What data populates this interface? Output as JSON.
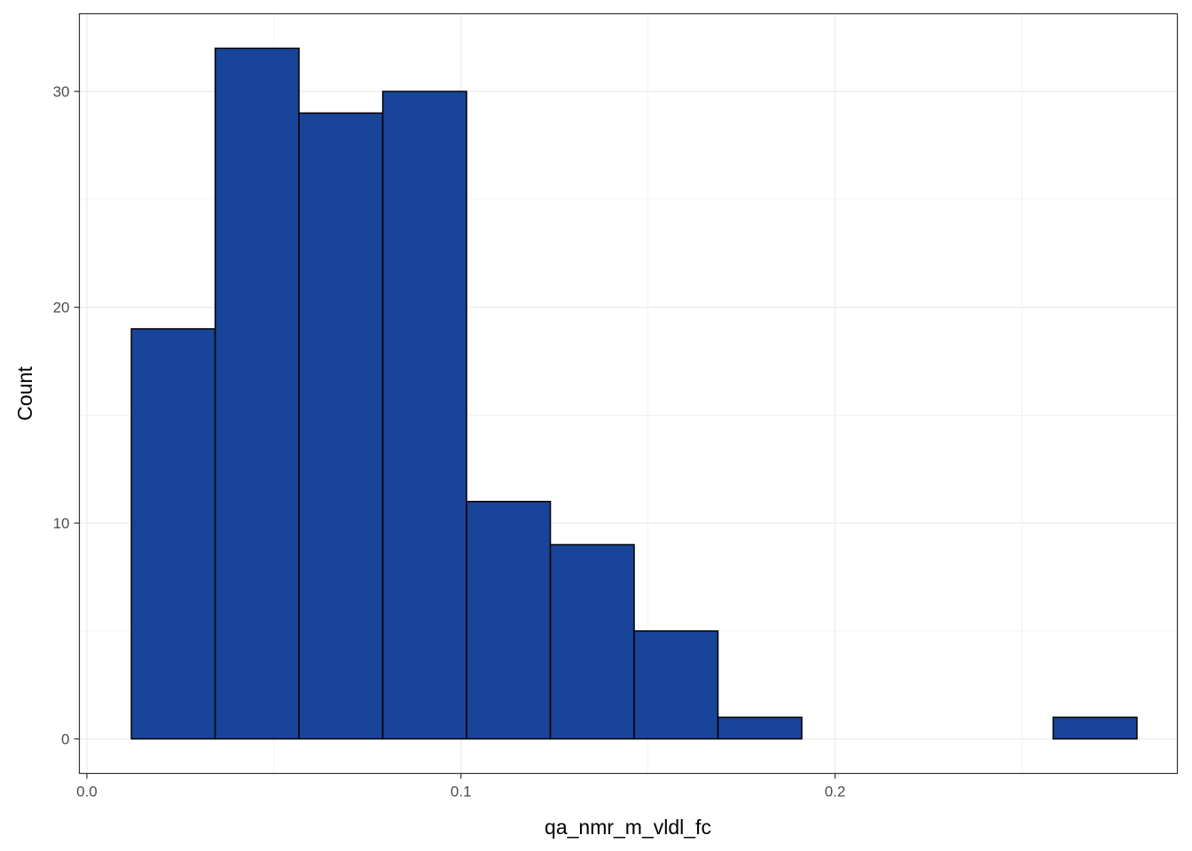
{
  "chart_data": {
    "type": "bar",
    "subtype": "histogram",
    "title": "",
    "xlabel": "qa_nmr_m_vldl_fc",
    "ylabel": "Count",
    "xlim": [
      -0.002,
      0.2915
    ],
    "ylim": [
      -1.6,
      33.6
    ],
    "x_ticks": [
      {
        "value": 0.0,
        "label": "0.0"
      },
      {
        "value": 0.1,
        "label": "0.1"
      },
      {
        "value": 0.2,
        "label": "0.2"
      }
    ],
    "y_ticks": [
      {
        "value": 0,
        "label": "0"
      },
      {
        "value": 10,
        "label": "10"
      },
      {
        "value": 20,
        "label": "20"
      },
      {
        "value": 30,
        "label": "30"
      }
    ],
    "x_minor_grid": [
      0.05,
      0.15,
      0.25
    ],
    "y_minor_grid": [
      5,
      15,
      25
    ],
    "grid": true,
    "bin_edges": [
      0.0119,
      0.0343,
      0.0567,
      0.0791,
      0.1015,
      0.1239,
      0.1463,
      0.1687,
      0.1911,
      0.2135,
      0.2359,
      0.2583,
      0.2807
    ],
    "values": [
      19,
      32,
      29,
      30,
      11,
      9,
      5,
      1,
      0,
      0,
      0,
      1
    ],
    "colors": {
      "bar_fill": "#184499",
      "bar_stroke": "#000000",
      "grid": "#ebebeb",
      "panel_border": "#333333"
    }
  }
}
